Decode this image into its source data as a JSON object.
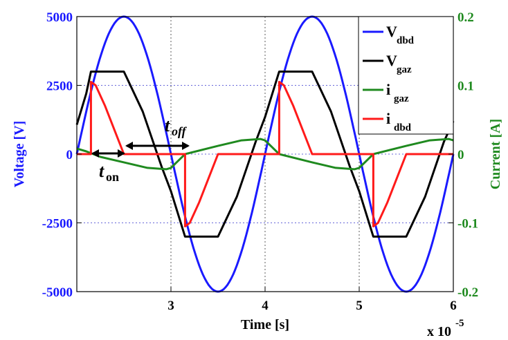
{
  "chart_data": {
    "type": "line",
    "xlabel": "Time [s]",
    "ylabel_left": "Voltage [V]",
    "ylabel_right": "Current [A]",
    "x_multiplier_label": "x 10",
    "x_multiplier_exp": "-5",
    "xlim": [
      2,
      6
    ],
    "ylim_left": [
      -5000,
      5000
    ],
    "ylim_right": [
      -0.2,
      0.2
    ],
    "x_ticks": [
      "3",
      "4",
      "5",
      "6"
    ],
    "y_left_ticks": [
      "5000",
      "2500",
      "0",
      "-2500",
      "-5000"
    ],
    "y_right_ticks": [
      "0.2",
      "0.1",
      "0",
      "-0.1",
      "-0.2"
    ],
    "grid": true,
    "legend_position": "top-right",
    "series": [
      {
        "name": "V",
        "sub": "dbd",
        "color": "#1a1aff",
        "axis": "left",
        "x": [
          2.0,
          2.25,
          2.5,
          2.75,
          3.0,
          3.25,
          3.5,
          3.75,
          4.0,
          4.25,
          4.5,
          4.75,
          5.0,
          5.25,
          5.5,
          5.75,
          6.0
        ],
        "y": [
          0,
          3536,
          5000,
          3536,
          0,
          -3536,
          -5000,
          -3536,
          0,
          3536,
          5000,
          3536,
          0,
          -3536,
          -5000,
          -3536,
          0
        ]
      },
      {
        "name": "V",
        "sub": "gaz",
        "color": "#000000",
        "axis": "left",
        "x": [
          2.0,
          2.1,
          2.15,
          2.5,
          2.7,
          2.9,
          3.0,
          3.15,
          3.5,
          3.7,
          3.9,
          4.0,
          4.15,
          4.5,
          4.7,
          4.9,
          5.0,
          5.15,
          5.5,
          5.7,
          5.9,
          6.0
        ],
        "y": [
          1070,
          2200,
          3000,
          3000,
          1550,
          -450,
          -1350,
          -3000,
          -3000,
          -1550,
          450,
          1350,
          3000,
          3000,
          1550,
          -450,
          -1350,
          -3000,
          -3000,
          -1550,
          450,
          1200
        ]
      },
      {
        "name": "i",
        "sub": "gaz",
        "color": "#1f8a1f",
        "axis": "right",
        "x": [
          2.0,
          2.1,
          2.25,
          2.5,
          2.75,
          2.95,
          3.0,
          3.15,
          3.5,
          3.75,
          3.95,
          4.0,
          4.15,
          4.5,
          4.75,
          4.95,
          5.0,
          5.15,
          5.5,
          5.75,
          5.95,
          6.0
        ],
        "y": [
          0.008,
          0.004,
          -0.004,
          -0.012,
          -0.02,
          -0.022,
          -0.02,
          0.0,
          0.012,
          0.02,
          0.022,
          0.02,
          0.0,
          -0.012,
          -0.02,
          -0.022,
          -0.02,
          0.0,
          0.012,
          0.02,
          0.022,
          0.02
        ]
      },
      {
        "name": "i",
        "sub": "dbd",
        "color": "#ff1a1a",
        "axis": "right",
        "x": [
          2.0,
          2.15,
          2.15,
          2.2,
          2.3,
          2.4,
          2.5,
          3.15,
          3.15,
          3.2,
          3.3,
          3.4,
          3.5,
          4.15,
          4.15,
          4.2,
          4.3,
          4.4,
          4.5,
          5.15,
          5.15,
          5.2,
          5.3,
          5.4,
          5.5,
          6.0
        ],
        "y": [
          0,
          0,
          0.105,
          0.1,
          0.07,
          0.035,
          0,
          0,
          -0.105,
          -0.1,
          -0.07,
          -0.035,
          0,
          0,
          0.105,
          0.1,
          0.07,
          0.035,
          0,
          0,
          -0.105,
          -0.1,
          -0.07,
          -0.035,
          0,
          0
        ]
      }
    ],
    "annotations": {
      "ton_main": "t",
      "ton_sub": "on",
      "toff_main": "t",
      "toff_sub": "off"
    }
  }
}
